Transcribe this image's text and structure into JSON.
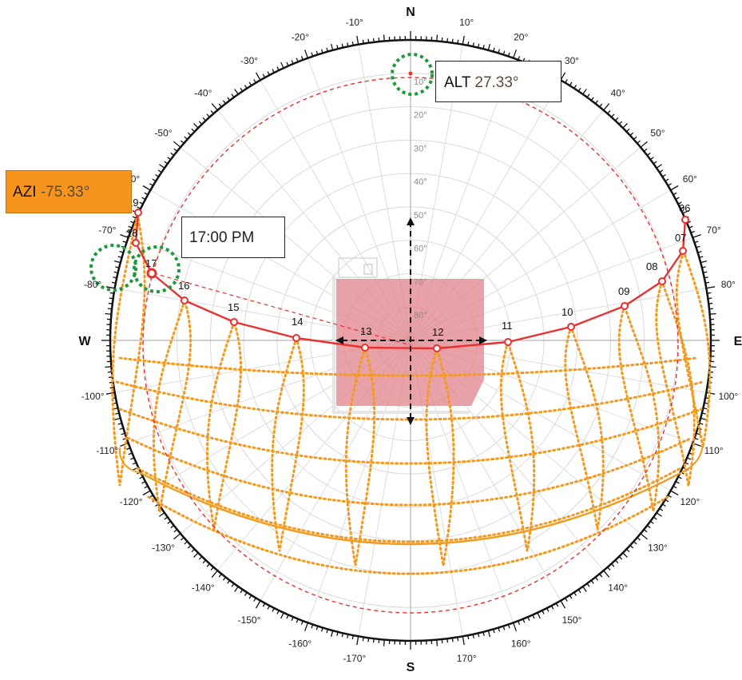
{
  "diagram": {
    "cardinals": {
      "north": "N",
      "south": "S",
      "west": "W",
      "east": "E"
    },
    "azimuth_labels": [
      "10°",
      "20°",
      "30°",
      "40°",
      "50°",
      "60°",
      "70°",
      "80°",
      "100°",
      "110°",
      "120°",
      "130°",
      "140°",
      "150°",
      "160°",
      "170°",
      "-170°",
      "-160°",
      "-150°",
      "-140°",
      "-130°",
      "-120°",
      "-110°",
      "-100°",
      "-80°",
      "-70°",
      "-60°",
      "-50°",
      "-40°",
      "-30°",
      "-20°",
      "-10°"
    ],
    "altitude_labels": [
      "10°",
      "20°",
      "30°",
      "40°",
      "50°",
      "60°",
      "70°",
      "80°"
    ],
    "sun_path": {
      "color": "#e8312f",
      "hour_points": [
        {
          "hour": "06"
        },
        {
          "hour": "07"
        },
        {
          "hour": "08"
        },
        {
          "hour": "09"
        },
        {
          "hour": "10"
        },
        {
          "hour": "11"
        },
        {
          "hour": "12"
        },
        {
          "hour": "13"
        },
        {
          "hour": "14"
        },
        {
          "hour": "15"
        },
        {
          "hour": "16"
        },
        {
          "hour": "17"
        },
        {
          "hour": "18"
        },
        {
          "hour": "19"
        }
      ]
    },
    "analemma_color": "#f39a1e",
    "obstruction_color": "#e07f86"
  },
  "callouts": {
    "alt": {
      "label": "ALT",
      "value": "27.33°"
    },
    "azi": {
      "label": "AZI",
      "value": "-75.33°"
    },
    "time": {
      "text": "17:00 PM"
    }
  }
}
